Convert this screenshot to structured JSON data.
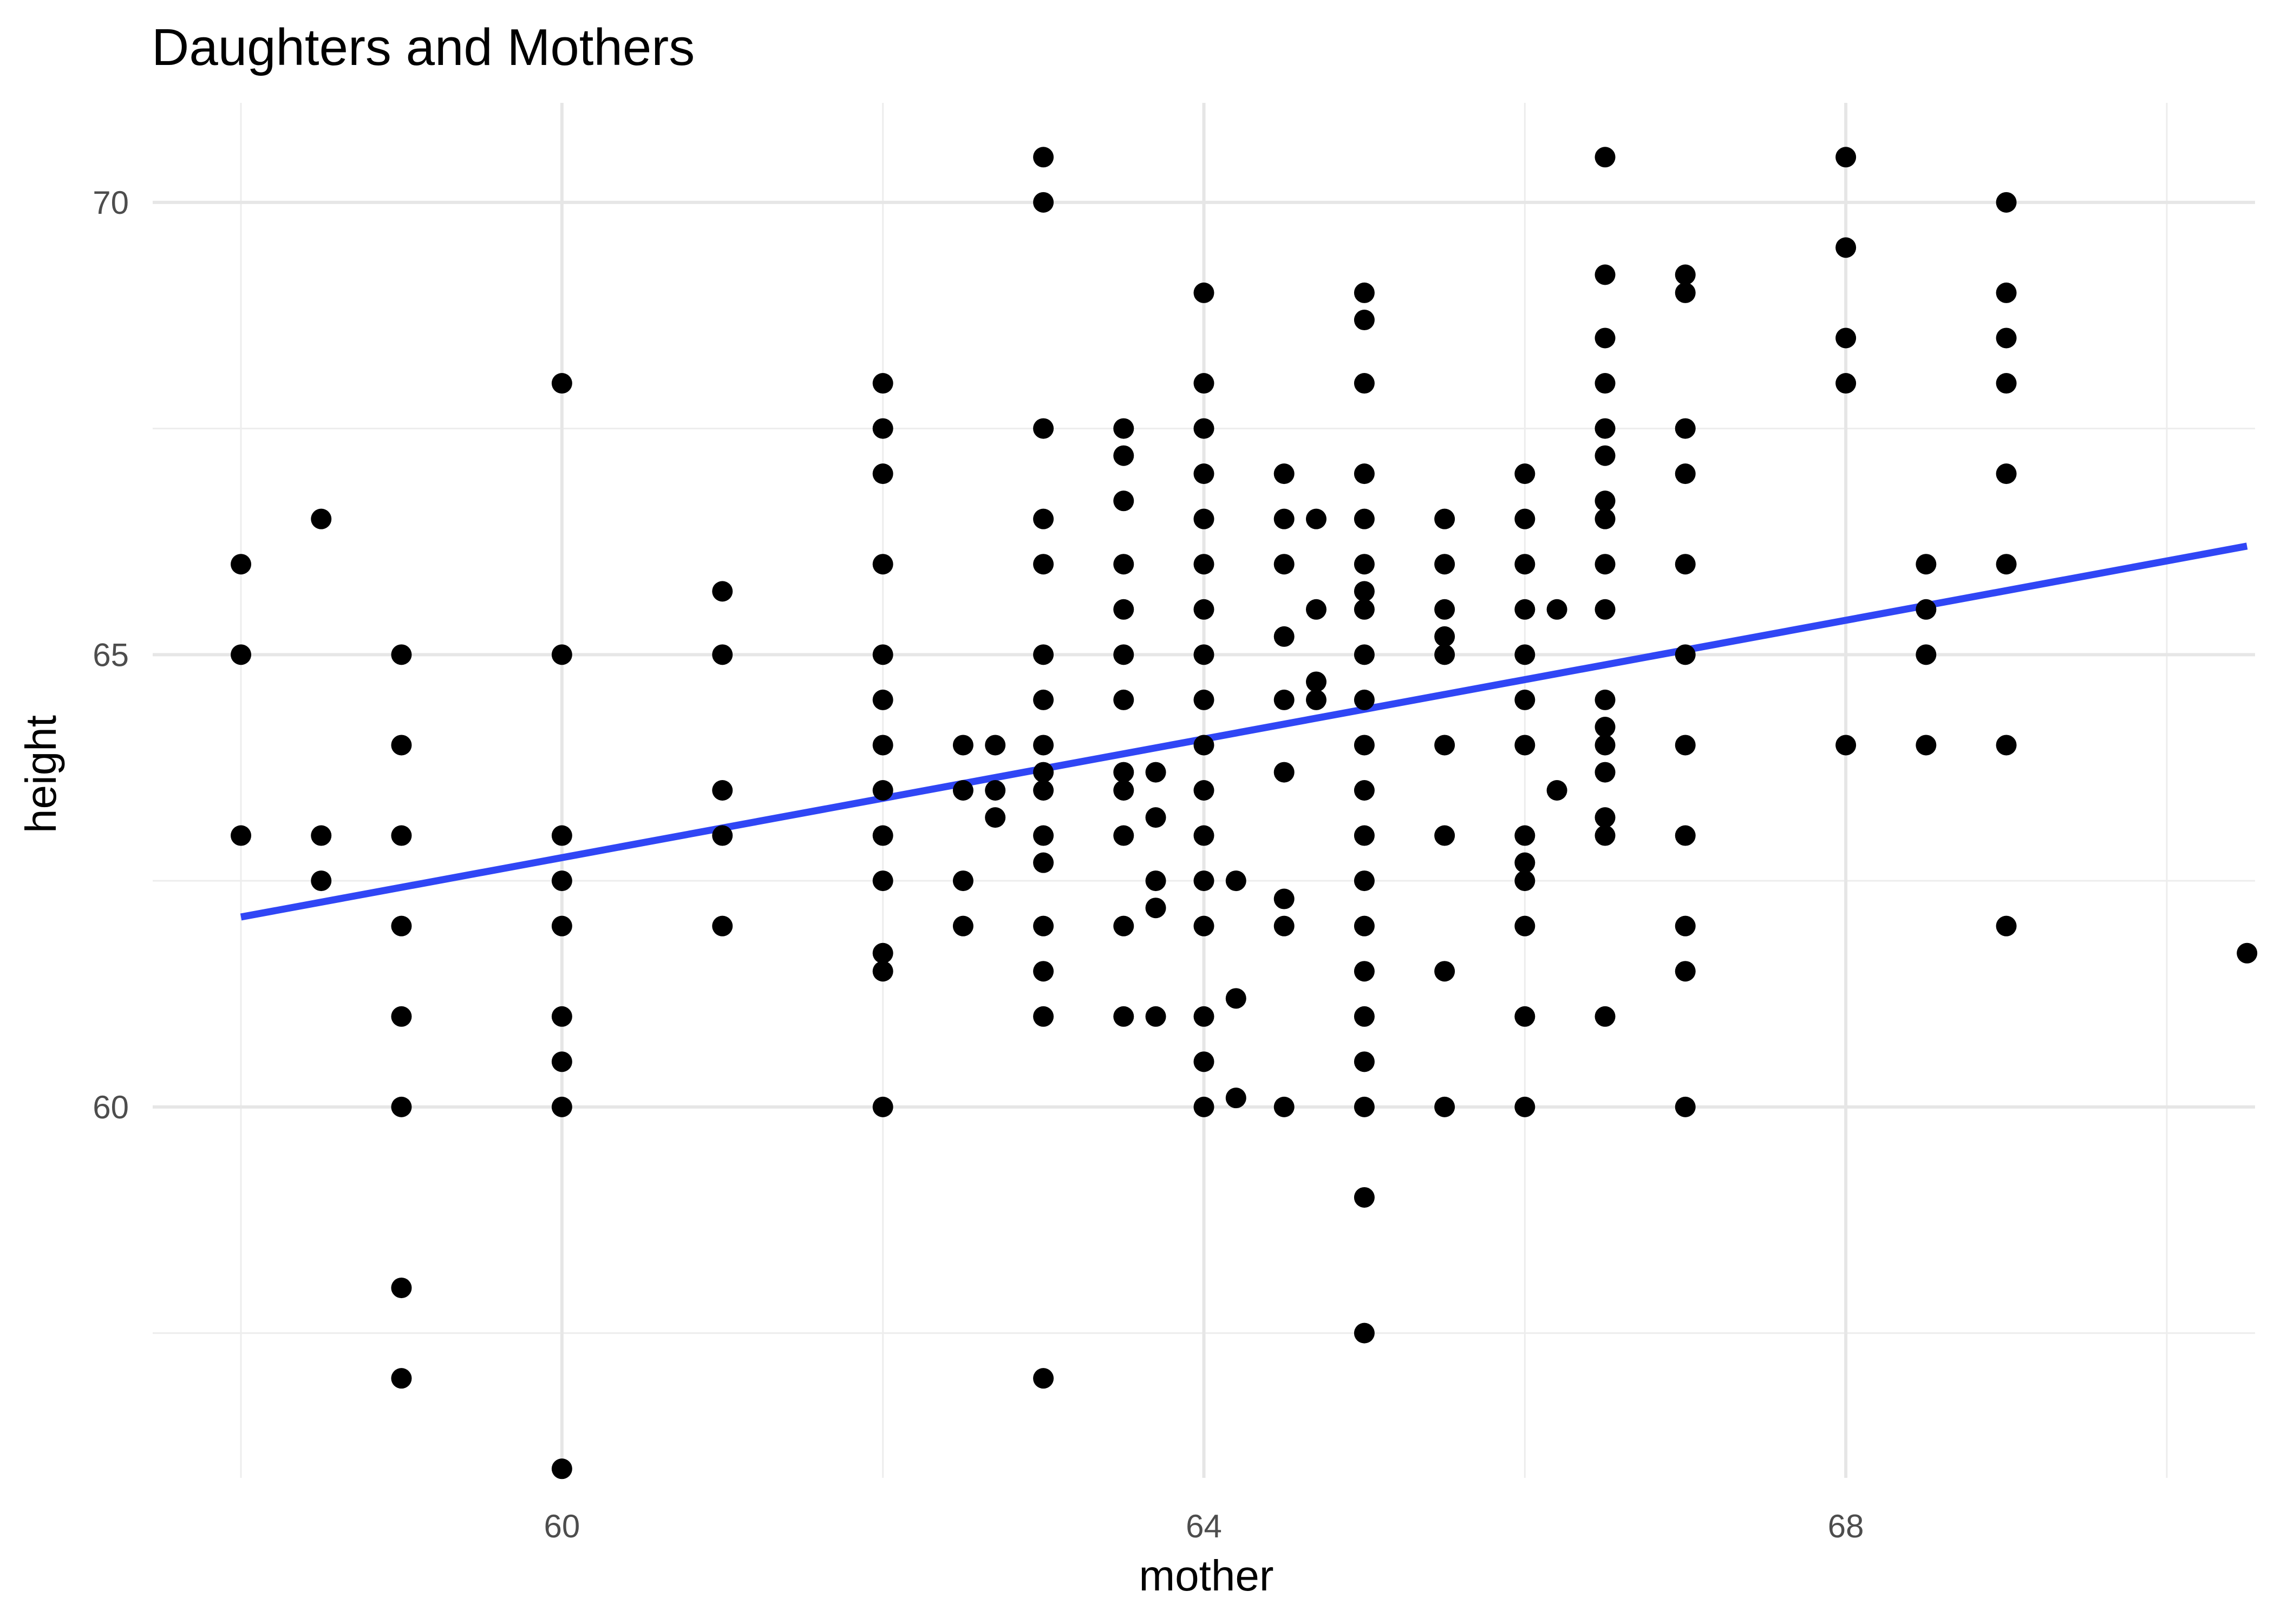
{
  "chart_data": {
    "type": "scatter",
    "title": "Daughters and Mothers",
    "xlabel": "mother",
    "ylabel": "height",
    "xlim": [
      57.45,
      70.55
    ],
    "ylim": [
      55.9,
      71.1
    ],
    "x_ticks": [
      60,
      64,
      68
    ],
    "y_ticks": [
      60,
      65,
      70
    ],
    "x_minor_ticks": [
      58,
      62,
      66,
      70
    ],
    "y_minor_ticks": [
      57.5,
      62.5,
      67.5
    ],
    "grid": true,
    "colors": {
      "points": "#000000",
      "fit_line": "#3046f5",
      "grid": "#e6e6e6"
    },
    "fit_line": {
      "x": [
        58,
        70.5
      ],
      "y": [
        62.1,
        66.2
      ]
    },
    "points": [
      [
        58,
        66
      ],
      [
        58,
        65
      ],
      [
        58,
        63
      ],
      [
        58.5,
        66.5
      ],
      [
        58.5,
        63
      ],
      [
        58.5,
        62.5
      ],
      [
        59,
        65
      ],
      [
        59,
        64
      ],
      [
        59,
        63
      ],
      [
        59,
        62
      ],
      [
        59,
        61
      ],
      [
        59,
        60
      ],
      [
        59,
        58
      ],
      [
        59,
        57
      ],
      [
        60,
        68
      ],
      [
        60,
        65
      ],
      [
        60,
        63
      ],
      [
        60,
        62.5
      ],
      [
        60,
        62
      ],
      [
        60,
        61
      ],
      [
        60,
        60.5
      ],
      [
        60,
        60
      ],
      [
        60,
        56
      ],
      [
        61,
        65.7
      ],
      [
        61,
        65
      ],
      [
        61,
        63.5
      ],
      [
        61,
        63
      ],
      [
        61,
        62
      ],
      [
        62,
        68
      ],
      [
        62,
        67.5
      ],
      [
        62,
        67
      ],
      [
        62,
        66
      ],
      [
        62,
        65
      ],
      [
        62,
        64.5
      ],
      [
        62,
        64
      ],
      [
        62,
        63.5
      ],
      [
        62,
        63
      ],
      [
        62,
        62.5
      ],
      [
        62,
        61.7
      ],
      [
        62,
        61.5
      ],
      [
        62,
        60
      ],
      [
        62.5,
        64
      ],
      [
        62.5,
        63.5
      ],
      [
        62.5,
        62.5
      ],
      [
        62.5,
        62
      ],
      [
        62.7,
        64
      ],
      [
        62.7,
        63.5
      ],
      [
        62.7,
        63.2
      ],
      [
        63,
        70.5
      ],
      [
        63,
        70
      ],
      [
        63,
        67.5
      ],
      [
        63,
        66.5
      ],
      [
        63,
        66
      ],
      [
        63,
        65
      ],
      [
        63,
        64.5
      ],
      [
        63,
        64
      ],
      [
        63,
        63.7
      ],
      [
        63,
        63.5
      ],
      [
        63,
        63
      ],
      [
        63,
        62.7
      ],
      [
        63,
        62
      ],
      [
        63,
        61.5
      ],
      [
        63,
        61
      ],
      [
        63,
        57
      ],
      [
        63.5,
        67.5
      ],
      [
        63.5,
        67.2
      ],
      [
        63.5,
        66.7
      ],
      [
        63.5,
        66
      ],
      [
        63.5,
        65.5
      ],
      [
        63.5,
        65
      ],
      [
        63.5,
        64.5
      ],
      [
        63.5,
        63.7
      ],
      [
        63.5,
        63.5
      ],
      [
        63.5,
        63
      ],
      [
        63.5,
        62
      ],
      [
        63.5,
        61
      ],
      [
        63.7,
        63.7
      ],
      [
        63.7,
        63.2
      ],
      [
        63.7,
        62.5
      ],
      [
        63.7,
        62.2
      ],
      [
        63.7,
        61
      ],
      [
        64,
        69
      ],
      [
        64,
        68
      ],
      [
        64,
        67.5
      ],
      [
        64,
        67
      ],
      [
        64,
        66.5
      ],
      [
        64,
        66
      ],
      [
        64,
        65.5
      ],
      [
        64,
        65
      ],
      [
        64,
        64.5
      ],
      [
        64,
        64
      ],
      [
        64,
        63.5
      ],
      [
        64,
        63
      ],
      [
        64,
        62.5
      ],
      [
        64,
        62
      ],
      [
        64,
        61
      ],
      [
        64,
        60.5
      ],
      [
        64,
        60
      ],
      [
        64.2,
        62.5
      ],
      [
        64.2,
        61.2
      ],
      [
        64.2,
        60.1
      ],
      [
        64.5,
        67
      ],
      [
        64.5,
        66.5
      ],
      [
        64.5,
        66
      ],
      [
        64.5,
        65.2
      ],
      [
        64.5,
        64.5
      ],
      [
        64.5,
        63.7
      ],
      [
        64.5,
        62.3
      ],
      [
        64.5,
        62
      ],
      [
        64.5,
        60
      ],
      [
        64.7,
        66.5
      ],
      [
        64.7,
        65.5
      ],
      [
        64.7,
        64.7
      ],
      [
        64.7,
        64.5
      ],
      [
        65,
        69
      ],
      [
        65,
        68.7
      ],
      [
        65,
        68
      ],
      [
        65,
        67
      ],
      [
        65,
        66.5
      ],
      [
        65,
        66
      ],
      [
        65,
        65.7
      ],
      [
        65,
        65.5
      ],
      [
        65,
        65
      ],
      [
        65,
        64.5
      ],
      [
        65,
        64
      ],
      [
        65,
        63.5
      ],
      [
        65,
        63
      ],
      [
        65,
        62.5
      ],
      [
        65,
        62
      ],
      [
        65,
        61.5
      ],
      [
        65,
        61
      ],
      [
        65,
        60.5
      ],
      [
        65,
        60
      ],
      [
        65,
        59
      ],
      [
        65,
        57.5
      ],
      [
        65.5,
        66.5
      ],
      [
        65.5,
        66
      ],
      [
        65.5,
        65.5
      ],
      [
        65.5,
        65.2
      ],
      [
        65.5,
        65
      ],
      [
        65.5,
        64
      ],
      [
        65.5,
        63
      ],
      [
        65.5,
        61.5
      ],
      [
        65.5,
        60
      ],
      [
        66,
        67
      ],
      [
        66,
        66.5
      ],
      [
        66,
        66
      ],
      [
        66,
        65.5
      ],
      [
        66,
        65
      ],
      [
        66,
        64.5
      ],
      [
        66,
        64
      ],
      [
        66,
        63
      ],
      [
        66,
        62.7
      ],
      [
        66,
        62.5
      ],
      [
        66,
        62
      ],
      [
        66,
        61
      ],
      [
        66,
        60
      ],
      [
        66.2,
        65.5
      ],
      [
        66.2,
        63.5
      ],
      [
        66.5,
        70.5
      ],
      [
        66.5,
        69.2
      ],
      [
        66.5,
        68.5
      ],
      [
        66.5,
        68
      ],
      [
        66.5,
        67.5
      ],
      [
        66.5,
        67.2
      ],
      [
        66.5,
        66.7
      ],
      [
        66.5,
        66.5
      ],
      [
        66.5,
        66
      ],
      [
        66.5,
        65.5
      ],
      [
        66.5,
        64.5
      ],
      [
        66.5,
        64.2
      ],
      [
        66.5,
        64
      ],
      [
        66.5,
        63.7
      ],
      [
        66.5,
        63.2
      ],
      [
        66.5,
        63
      ],
      [
        66.5,
        61
      ],
      [
        67,
        69.2
      ],
      [
        67,
        69
      ],
      [
        67,
        67.5
      ],
      [
        67,
        67
      ],
      [
        67,
        66
      ],
      [
        67,
        65
      ],
      [
        67,
        64
      ],
      [
        67,
        63
      ],
      [
        67,
        62
      ],
      [
        67,
        61.5
      ],
      [
        67,
        60
      ],
      [
        68,
        70.5
      ],
      [
        68,
        69.5
      ],
      [
        68,
        68.5
      ],
      [
        68,
        68
      ],
      [
        68,
        64
      ],
      [
        68.5,
        66
      ],
      [
        68.5,
        65.5
      ],
      [
        68.5,
        65
      ],
      [
        68.5,
        64
      ],
      [
        69,
        70
      ],
      [
        69,
        69
      ],
      [
        69,
        68.5
      ],
      [
        69,
        68
      ],
      [
        69,
        67
      ],
      [
        69,
        66
      ],
      [
        69,
        64
      ],
      [
        69,
        62
      ],
      [
        70.5,
        61.7
      ]
    ]
  }
}
